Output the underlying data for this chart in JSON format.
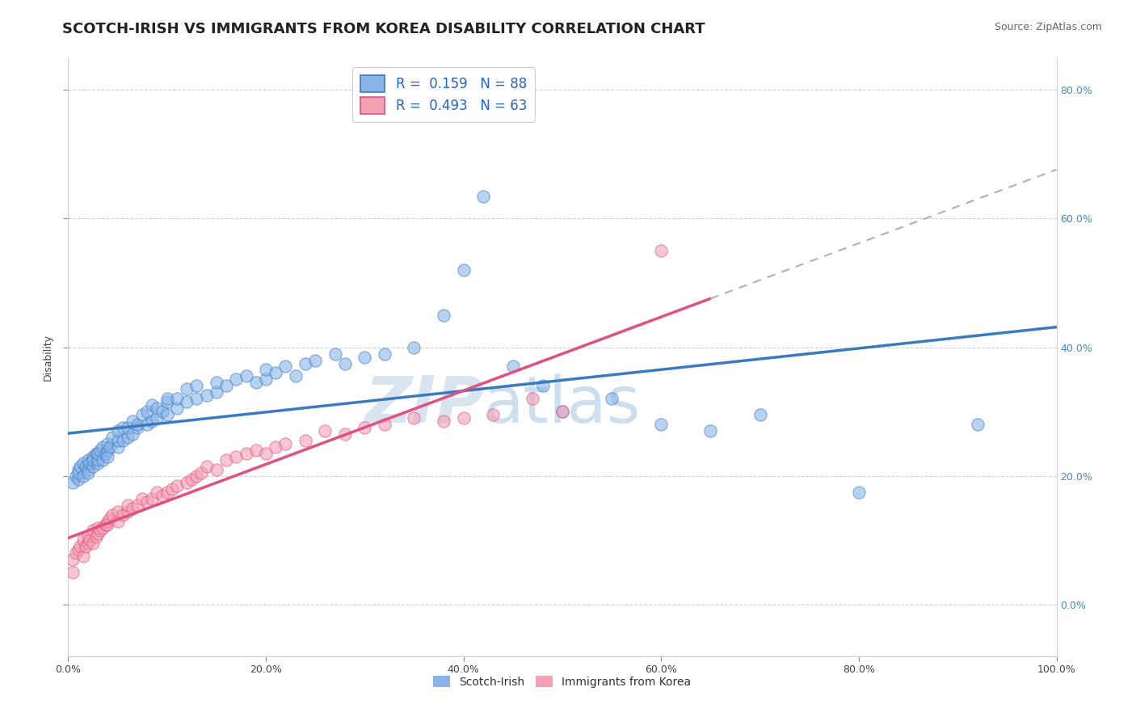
{
  "title": "SCOTCH-IRISH VS IMMIGRANTS FROM KOREA DISABILITY CORRELATION CHART",
  "source": "Source: ZipAtlas.com",
  "ylabel": "Disability",
  "watermark_zip": "ZIP",
  "watermark_atlas": "atlas",
  "xlim": [
    0.0,
    1.0
  ],
  "ylim": [
    -0.08,
    0.85
  ],
  "xticks": [
    0.0,
    0.2,
    0.4,
    0.6,
    0.8,
    1.0
  ],
  "xticklabels": [
    "0.0%",
    "20.0%",
    "40.0%",
    "60.0%",
    "80.0%",
    "100.0%"
  ],
  "yticks_right": [
    0.0,
    0.2,
    0.4,
    0.6,
    0.8
  ],
  "yticklabels_right": [
    "0.0%",
    "20.0%",
    "40.0%",
    "60.0%",
    "80.0%"
  ],
  "color_blue": "#8ab4e8",
  "color_pink": "#f4a0b5",
  "line_blue": "#3a7abf",
  "line_pink": "#e05080",
  "line_dash": "#b0b0b0",
  "scotch_irish_x": [
    0.005,
    0.008,
    0.01,
    0.01,
    0.01,
    0.012,
    0.015,
    0.015,
    0.018,
    0.02,
    0.02,
    0.02,
    0.022,
    0.025,
    0.025,
    0.025,
    0.028,
    0.03,
    0.03,
    0.03,
    0.032,
    0.035,
    0.035,
    0.038,
    0.04,
    0.04,
    0.04,
    0.042,
    0.045,
    0.05,
    0.05,
    0.05,
    0.055,
    0.055,
    0.06,
    0.06,
    0.065,
    0.065,
    0.07,
    0.07,
    0.075,
    0.08,
    0.08,
    0.085,
    0.085,
    0.09,
    0.09,
    0.095,
    0.1,
    0.1,
    0.1,
    0.11,
    0.11,
    0.12,
    0.12,
    0.13,
    0.13,
    0.14,
    0.15,
    0.15,
    0.16,
    0.17,
    0.18,
    0.19,
    0.2,
    0.2,
    0.21,
    0.22,
    0.23,
    0.24,
    0.25,
    0.27,
    0.28,
    0.3,
    0.32,
    0.35,
    0.38,
    0.4,
    0.42,
    0.45,
    0.48,
    0.5,
    0.55,
    0.6,
    0.65,
    0.7,
    0.8,
    0.92
  ],
  "scotch_irish_y": [
    0.19,
    0.2,
    0.21,
    0.195,
    0.205,
    0.215,
    0.2,
    0.22,
    0.215,
    0.21,
    0.225,
    0.205,
    0.22,
    0.215,
    0.23,
    0.225,
    0.235,
    0.22,
    0.225,
    0.235,
    0.24,
    0.225,
    0.245,
    0.235,
    0.24,
    0.25,
    0.23,
    0.245,
    0.26,
    0.245,
    0.255,
    0.27,
    0.255,
    0.275,
    0.26,
    0.275,
    0.265,
    0.285,
    0.275,
    0.28,
    0.295,
    0.28,
    0.3,
    0.285,
    0.31,
    0.29,
    0.305,
    0.3,
    0.295,
    0.315,
    0.32,
    0.305,
    0.32,
    0.315,
    0.335,
    0.32,
    0.34,
    0.325,
    0.33,
    0.345,
    0.34,
    0.35,
    0.355,
    0.345,
    0.35,
    0.365,
    0.36,
    0.37,
    0.355,
    0.375,
    0.38,
    0.39,
    0.375,
    0.385,
    0.39,
    0.4,
    0.45,
    0.52,
    0.635,
    0.37,
    0.34,
    0.3,
    0.32,
    0.28,
    0.27,
    0.295,
    0.175,
    0.28
  ],
  "korea_x": [
    0.005,
    0.005,
    0.008,
    0.01,
    0.012,
    0.015,
    0.015,
    0.018,
    0.02,
    0.02,
    0.022,
    0.025,
    0.025,
    0.028,
    0.03,
    0.03,
    0.032,
    0.035,
    0.038,
    0.04,
    0.04,
    0.042,
    0.045,
    0.05,
    0.05,
    0.055,
    0.06,
    0.06,
    0.065,
    0.07,
    0.075,
    0.08,
    0.085,
    0.09,
    0.095,
    0.1,
    0.105,
    0.11,
    0.12,
    0.125,
    0.13,
    0.135,
    0.14,
    0.15,
    0.16,
    0.17,
    0.18,
    0.19,
    0.2,
    0.21,
    0.22,
    0.24,
    0.26,
    0.28,
    0.3,
    0.32,
    0.35,
    0.38,
    0.4,
    0.43,
    0.47,
    0.5,
    0.6
  ],
  "korea_y": [
    0.07,
    0.05,
    0.08,
    0.085,
    0.09,
    0.075,
    0.1,
    0.09,
    0.095,
    0.105,
    0.1,
    0.095,
    0.115,
    0.105,
    0.11,
    0.12,
    0.115,
    0.12,
    0.125,
    0.13,
    0.125,
    0.135,
    0.14,
    0.13,
    0.145,
    0.14,
    0.145,
    0.155,
    0.15,
    0.155,
    0.165,
    0.16,
    0.165,
    0.175,
    0.17,
    0.175,
    0.18,
    0.185,
    0.19,
    0.195,
    0.2,
    0.205,
    0.215,
    0.21,
    0.225,
    0.23,
    0.235,
    0.24,
    0.235,
    0.245,
    0.25,
    0.255,
    0.27,
    0.265,
    0.275,
    0.28,
    0.29,
    0.285,
    0.29,
    0.295,
    0.32,
    0.3,
    0.55
  ],
  "title_fontsize": 13,
  "axis_label_fontsize": 9,
  "tick_fontsize": 9,
  "legend_fontsize": 12,
  "background_color": "#ffffff",
  "grid_color": "#cccccc"
}
